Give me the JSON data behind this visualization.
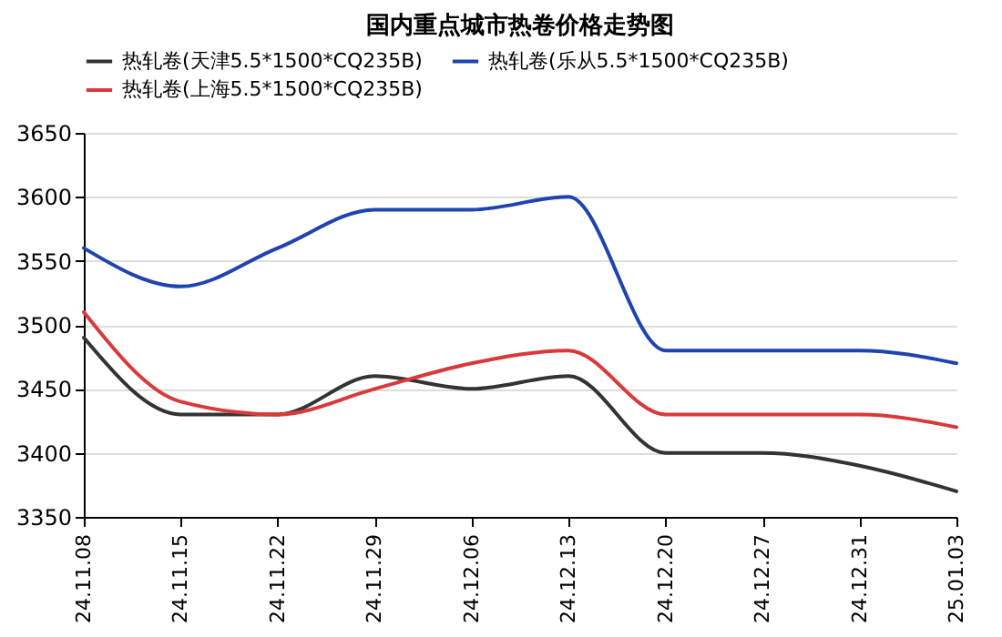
{
  "chart_data": {
    "type": "line",
    "title": "国内重点城市热卷价格走势图",
    "categories": [
      "24.11.08",
      "24.11.15",
      "24.11.22",
      "24.11.29",
      "24.12.06",
      "24.12.13",
      "24.12.20",
      "24.12.27",
      "24.12.31",
      "25.01.03"
    ],
    "series": [
      {
        "name": "热轧卷(天津5.5*1500*CQ235B)",
        "color": "#333333",
        "values": [
          3490,
          3430,
          3430,
          3460,
          3450,
          3460,
          3400,
          3400,
          3390,
          3370
        ]
      },
      {
        "name": "热轧卷(乐从5.5*1500*CQ235B)",
        "color": "#1f44b0",
        "values": [
          3560,
          3530,
          3560,
          3590,
          3590,
          3600,
          3480,
          3480,
          3480,
          3470
        ]
      },
      {
        "name": "热轧卷(上海5.5*1500*CQ235B)",
        "color": "#d9393b",
        "values": [
          3510,
          3440,
          3430,
          3450,
          3470,
          3480,
          3430,
          3430,
          3430,
          3420
        ]
      }
    ],
    "ylim": [
      3350,
      3650
    ],
    "yticks": [
      3350,
      3400,
      3450,
      3500,
      3550,
      3600,
      3650
    ],
    "grid": "y",
    "legend": "top",
    "marker": "none",
    "line_style": "solid"
  }
}
